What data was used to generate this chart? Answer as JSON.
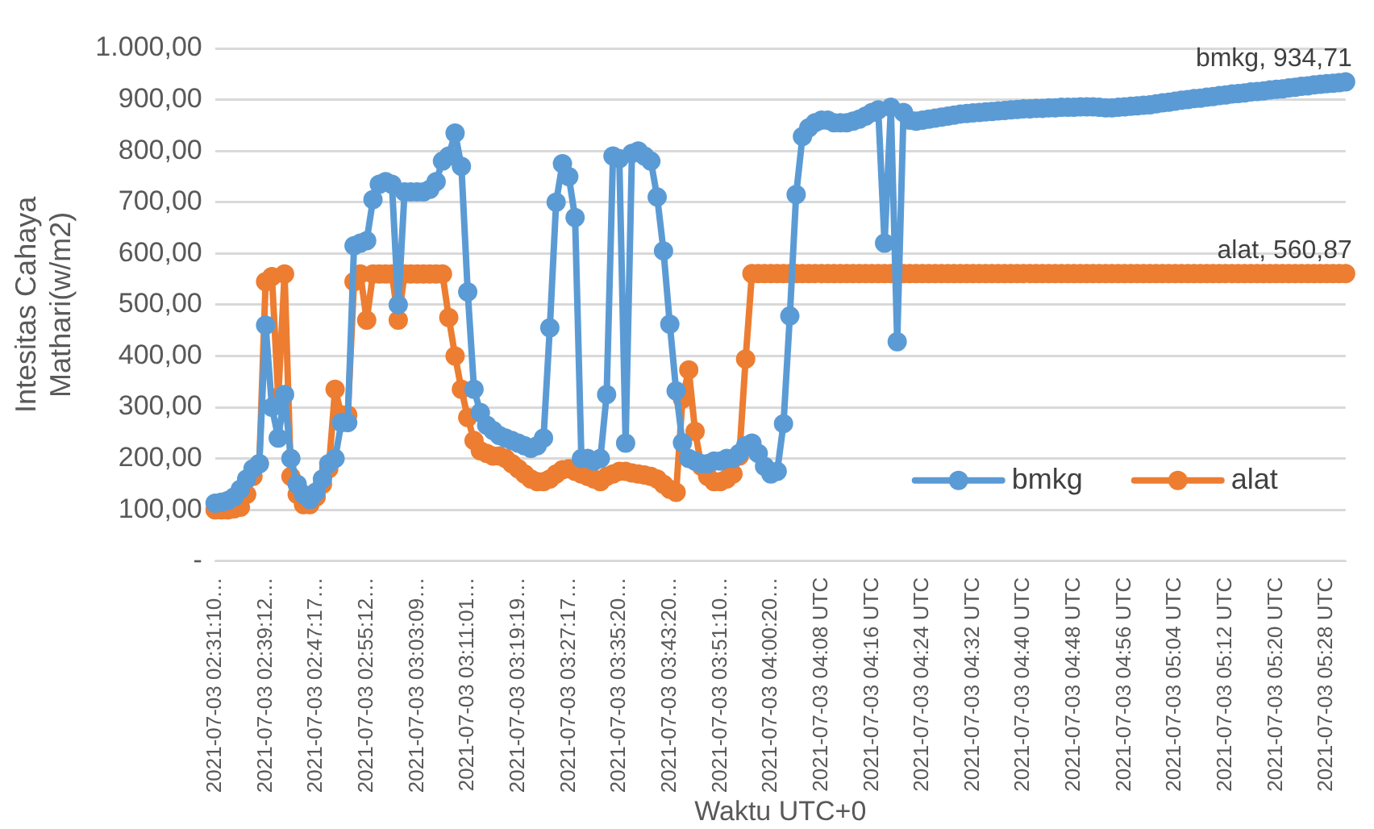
{
  "chart_data": {
    "type": "line",
    "xlabel": "Waktu UTC+0",
    "ylabel": "Intesitas Cahaya Mathari(w/m2)",
    "categories": [
      "2021-07-03 02:31:10…",
      null,
      null,
      null,
      null,
      null,
      null,
      null,
      "2021-07-03 02:39:12…",
      null,
      null,
      null,
      null,
      null,
      null,
      null,
      "2021-07-03 02:47:17…",
      null,
      null,
      null,
      null,
      null,
      null,
      null,
      "2021-07-03 02:55:12…",
      null,
      null,
      null,
      null,
      null,
      null,
      null,
      "2021-07-03 03:03:09…",
      null,
      null,
      null,
      null,
      null,
      null,
      null,
      "2021-07-03 03:11:01…",
      null,
      null,
      null,
      null,
      null,
      null,
      null,
      "2021-07-03 03:19:19…",
      null,
      null,
      null,
      null,
      null,
      null,
      null,
      "2021-07-03 03:27:17…",
      null,
      null,
      null,
      null,
      null,
      null,
      null,
      "2021-07-03 03:35:20…",
      null,
      null,
      null,
      null,
      null,
      null,
      null,
      "2021-07-03 03:43:20…",
      null,
      null,
      null,
      null,
      null,
      null,
      null,
      "2021-07-03 03:51:10…",
      null,
      null,
      null,
      null,
      null,
      null,
      null,
      "2021-07-03 04:00:20…",
      null,
      null,
      null,
      null,
      null,
      null,
      null,
      "2021-07-03 04:08 UTC",
      null,
      null,
      null,
      null,
      null,
      null,
      null,
      "2021-07-03 04:16 UTC",
      null,
      null,
      null,
      null,
      null,
      null,
      null,
      "2021-07-03 04:24 UTC",
      null,
      null,
      null,
      null,
      null,
      null,
      null,
      "2021-07-03 04:32 UTC",
      null,
      null,
      null,
      null,
      null,
      null,
      null,
      "2021-07-03 04:40 UTC",
      null,
      null,
      null,
      null,
      null,
      null,
      null,
      "2021-07-03 04:48 UTC",
      null,
      null,
      null,
      null,
      null,
      null,
      null,
      "2021-07-03 04:56 UTC",
      null,
      null,
      null,
      null,
      null,
      null,
      null,
      "2021-07-03 05:04 UTC",
      null,
      null,
      null,
      null,
      null,
      null,
      null,
      "2021-07-03 05:12 UTC",
      null,
      null,
      null,
      null,
      null,
      null,
      null,
      "2021-07-03 05:20 UTC",
      null,
      null,
      null,
      null,
      null,
      null,
      null,
      "2021-07-03 05:28 UTC",
      null,
      null,
      null
    ],
    "series": [
      {
        "name": "bmkg",
        "color": "#5b9bd5",
        "values": [
          113,
          115,
          118,
          125,
          140,
          160,
          180,
          190,
          460,
          300,
          240,
          325,
          200,
          150,
          130,
          120,
          135,
          160,
          190,
          200,
          270,
          270,
          615,
          620,
          625,
          705,
          735,
          740,
          735,
          500,
          720,
          720,
          720,
          720,
          725,
          740,
          780,
          790,
          835,
          770,
          525,
          335,
          290,
          265,
          255,
          245,
          240,
          235,
          230,
          225,
          220,
          225,
          240,
          455,
          700,
          775,
          750,
          670,
          200,
          200,
          195,
          200,
          325,
          790,
          785,
          230,
          795,
          800,
          790,
          780,
          710,
          605,
          462,
          332,
          231,
          200,
          195,
          190,
          190,
          195,
          195,
          200,
          200,
          210,
          225,
          230,
          210,
          185,
          170,
          175,
          268,
          478,
          715,
          828,
          845,
          855,
          860,
          860,
          855,
          855,
          855,
          858,
          862,
          868,
          875,
          880,
          620,
          885,
          428,
          875,
          860,
          858,
          860,
          862,
          864,
          866,
          868,
          870,
          872,
          873,
          874,
          875,
          876,
          877,
          878,
          879,
          880,
          881,
          882,
          882,
          883,
          883,
          884,
          884,
          885,
          885,
          885,
          886,
          886,
          886,
          885,
          884,
          884,
          885,
          886,
          887,
          888,
          889,
          890,
          892,
          894,
          895,
          897,
          899,
          900,
          902,
          903,
          905,
          906,
          908,
          909,
          911,
          912,
          913,
          915,
          916,
          917,
          919,
          920,
          921,
          923,
          924,
          926,
          927,
          929,
          930,
          931,
          932,
          933,
          934.71
        ],
        "value_labels": [
          null,
          null,
          null,
          null,
          null,
          null,
          null,
          null,
          null,
          null,
          null,
          null,
          null,
          null,
          null,
          null,
          null,
          null,
          null,
          null,
          null,
          null,
          null,
          null,
          null,
          null,
          null,
          null,
          null,
          null,
          null,
          null,
          null,
          null,
          null,
          null,
          null,
          null,
          null,
          null,
          null,
          null,
          null,
          null,
          null,
          null,
          null,
          null,
          null,
          null,
          null,
          null,
          null,
          null,
          null,
          null,
          null,
          null,
          null,
          null,
          null,
          null,
          null,
          null,
          null,
          null,
          null,
          null,
          null,
          null,
          null,
          null,
          null,
          null,
          null,
          null,
          null,
          null,
          null,
          null,
          null,
          null,
          null,
          null,
          null,
          null,
          null,
          null,
          null,
          null,
          null,
          null,
          null,
          null,
          null,
          null,
          null,
          null,
          null,
          null,
          null,
          null,
          null,
          null,
          null,
          null,
          null,
          null,
          null,
          null,
          null,
          null,
          null,
          null,
          null,
          null,
          null,
          null,
          null,
          null,
          null,
          null,
          null,
          null,
          null,
          null,
          null,
          null,
          null,
          null,
          null,
          null,
          null,
          null,
          null,
          null,
          null,
          null,
          null,
          null,
          null,
          null,
          null,
          null,
          null,
          null,
          null,
          null,
          null,
          null,
          null,
          null,
          null,
          null,
          null,
          null,
          null,
          null,
          null,
          null,
          null,
          null,
          null,
          null,
          null,
          null,
          null,
          null,
          null,
          null,
          null,
          null,
          null,
          null,
          null,
          null,
          null,
          null,
          null,
          "bmkg, 934,71"
        ]
      },
      {
        "name": "alat",
        "color": "#ed7d31",
        "values": [
          100,
          100,
          100,
          102,
          105,
          130,
          165,
          190,
          545,
          555,
          320,
          560,
          165,
          130,
          110,
          110,
          125,
          150,
          180,
          335,
          285,
          285,
          545,
          560,
          470,
          560,
          560,
          560,
          560,
          470,
          560,
          560,
          560,
          560,
          560,
          560,
          560,
          475,
          400,
          335,
          280,
          235,
          215,
          210,
          205,
          205,
          200,
          190,
          180,
          170,
          160,
          155,
          155,
          160,
          170,
          178,
          180,
          175,
          170,
          165,
          160,
          155,
          165,
          170,
          175,
          175,
          172,
          170,
          168,
          165,
          160,
          150,
          140,
          134,
          316,
          373,
          253,
          185,
          165,
          155,
          155,
          160,
          170,
          205,
          394,
          560.87,
          560.87,
          560.87,
          560.87,
          560.87,
          560.87,
          560.87,
          560.87,
          560.87,
          560.87,
          560.87,
          560.87,
          560.87,
          560.87,
          560.87,
          560.87,
          560.87,
          560.87,
          560.87,
          560.87,
          560.87,
          560.87,
          560.87,
          560.87,
          560.87,
          560.87,
          560.87,
          560.87,
          560.87,
          560.87,
          560.87,
          560.87,
          560.87,
          560.87,
          560.87,
          560.87,
          560.87,
          560.87,
          560.87,
          560.87,
          560.87,
          560.87,
          560.87,
          560.87,
          560.87,
          560.87,
          560.87,
          560.87,
          560.87,
          560.87,
          560.87,
          560.87,
          560.87,
          560.87,
          560.87,
          560.87,
          560.87,
          560.87,
          560.87,
          560.87,
          560.87,
          560.87,
          560.87,
          560.87,
          560.87,
          560.87,
          560.87,
          560.87,
          560.87,
          560.87,
          560.87,
          560.87,
          560.87,
          560.87,
          560.87,
          560.87,
          560.87,
          560.87,
          560.87,
          560.87,
          560.87,
          560.87,
          560.87,
          560.87,
          560.87,
          560.87,
          560.87,
          560.87,
          560.87,
          560.87,
          560.87,
          560.87,
          560.87,
          560.87,
          560.87
        ],
        "value_labels": [
          null,
          null,
          null,
          null,
          null,
          null,
          null,
          null,
          null,
          null,
          null,
          null,
          null,
          null,
          null,
          null,
          null,
          null,
          null,
          null,
          null,
          null,
          null,
          null,
          null,
          null,
          null,
          null,
          null,
          null,
          null,
          null,
          null,
          null,
          null,
          null,
          null,
          null,
          null,
          null,
          null,
          null,
          null,
          null,
          null,
          null,
          null,
          null,
          null,
          null,
          null,
          null,
          null,
          null,
          null,
          null,
          null,
          null,
          null,
          null,
          null,
          null,
          null,
          null,
          null,
          null,
          null,
          null,
          null,
          null,
          null,
          null,
          null,
          null,
          null,
          null,
          null,
          null,
          null,
          null,
          null,
          null,
          null,
          null,
          null,
          null,
          null,
          null,
          null,
          null,
          null,
          null,
          null,
          null,
          null,
          null,
          null,
          null,
          null,
          null,
          null,
          null,
          null,
          null,
          null,
          null,
          null,
          null,
          null,
          null,
          null,
          null,
          null,
          null,
          null,
          null,
          null,
          null,
          null,
          null,
          null,
          null,
          null,
          null,
          null,
          null,
          null,
          null,
          null,
          null,
          null,
          null,
          null,
          null,
          null,
          null,
          null,
          null,
          null,
          null,
          null,
          null,
          null,
          null,
          null,
          null,
          null,
          null,
          null,
          null,
          null,
          null,
          null,
          null,
          null,
          null,
          null,
          null,
          null,
          null,
          null,
          null,
          null,
          null,
          null,
          null,
          null,
          null,
          null,
          null,
          null,
          null,
          null,
          null,
          null,
          null,
          null,
          null,
          null,
          "alat, 560,87"
        ]
      }
    ],
    "ylim": [
      0,
      1000
    ],
    "yticks": [
      {
        "value": 0,
        "label": "-"
      },
      {
        "value": 100,
        "label": "100,00"
      },
      {
        "value": 200,
        "label": "200,00"
      },
      {
        "value": 300,
        "label": "300,00"
      },
      {
        "value": 400,
        "label": "400,00"
      },
      {
        "value": 500,
        "label": "500,00"
      },
      {
        "value": 600,
        "label": "600,00"
      },
      {
        "value": 700,
        "label": "700,00"
      },
      {
        "value": 800,
        "label": "800,00"
      },
      {
        "value": 900,
        "label": "900,00"
      },
      {
        "value": 1000,
        "label": "1.000,00"
      }
    ],
    "grid": "y",
    "legend": "bottom right",
    "marker": "circle",
    "line_style": "solid"
  }
}
